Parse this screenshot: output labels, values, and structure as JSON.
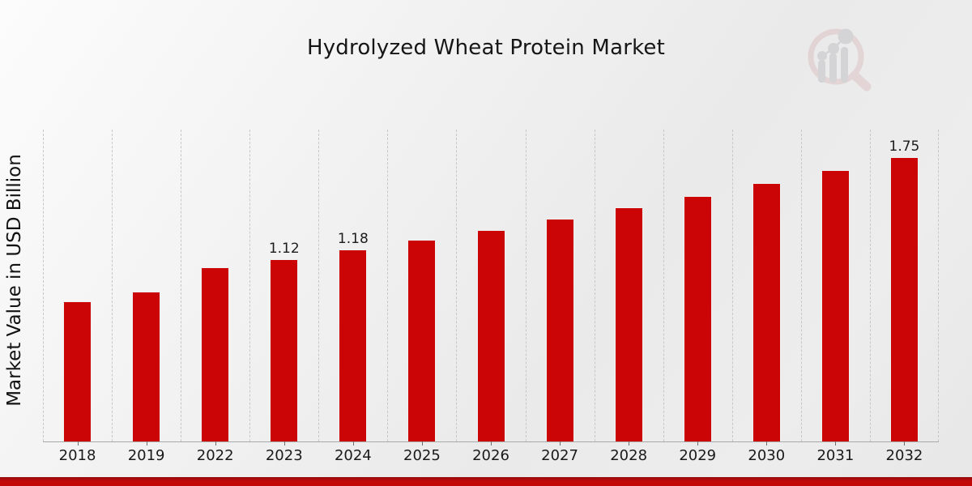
{
  "header": {
    "title": "Hydrolyzed Wheat Protein Market"
  },
  "branding": {
    "logo_icon": "magnifier-bar-chart-logo"
  },
  "footer": {
    "accent_color_top": "#930d0d",
    "accent_color_main": "#c30808"
  },
  "chart_data": {
    "type": "bar",
    "title": "Hydrolyzed Wheat Protein Market",
    "xlabel": "",
    "ylabel": "Market Value in USD Billion",
    "categories": [
      "2018",
      "2019",
      "2022",
      "2023",
      "2024",
      "2025",
      "2026",
      "2027",
      "2028",
      "2029",
      "2030",
      "2031",
      "2032"
    ],
    "values": [
      0.86,
      0.92,
      1.07,
      1.12,
      1.18,
      1.24,
      1.3,
      1.37,
      1.44,
      1.51,
      1.59,
      1.67,
      1.75
    ],
    "data_labels": {
      "2023": "1.12",
      "2024": "1.18",
      "2032": "1.75"
    },
    "unit": "USD Billion",
    "ylim": [
      0,
      1.925
    ],
    "bar_color": "#cb0505",
    "grid": "vertical-dashed",
    "gridline_color": "#c7c7c7",
    "axis_line_color": "#a9a9a9",
    "legend": "none"
  }
}
